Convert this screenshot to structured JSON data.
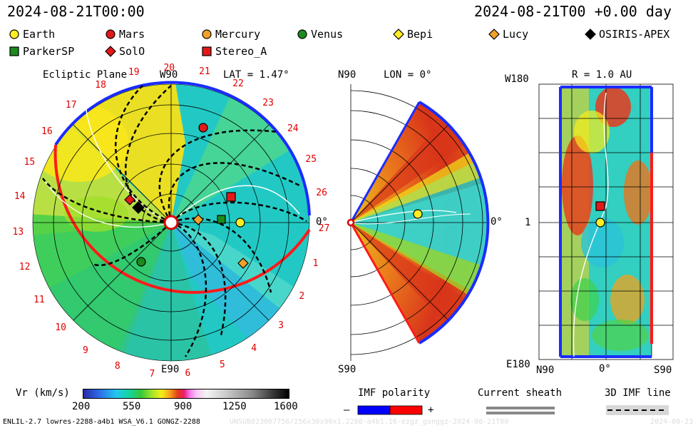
{
  "header": {
    "left_time": "2024-08-21T00:00",
    "right_time": "2024-08-21T00 +0.00 day"
  },
  "legend": [
    {
      "label": "Earth",
      "color": "#ffee22",
      "shape": "circle"
    },
    {
      "label": "Mars",
      "color": "#e41818",
      "shape": "circle"
    },
    {
      "label": "Mercury",
      "color": "#f2a128",
      "shape": "circle"
    },
    {
      "label": "Venus",
      "color": "#1c8a1c",
      "shape": "circle"
    },
    {
      "label": "Bepi",
      "color": "#ffee22",
      "shape": "diamond"
    },
    {
      "label": "Lucy",
      "color": "#f2a128",
      "shape": "diamond"
    },
    {
      "label": "OSIRIS-APEX",
      "color": "#000000",
      "shape": "diamond"
    },
    {
      "label": "ParkerSP",
      "color": "#1c8a1c",
      "shape": "square"
    },
    {
      "label": "SolO",
      "color": "#e41818",
      "shape": "diamond"
    },
    {
      "label": "Stereo_A",
      "color": "#e41818",
      "shape": "square"
    }
  ],
  "panels": {
    "ecliptic": {
      "title": "Ecliptic Plane",
      "lat": "LAT = 1.47°",
      "top": "W90",
      "bottom": "E90",
      "right": "0°",
      "carrington": [
        "19",
        "20",
        "21",
        "22",
        "23",
        "24",
        "25",
        "26",
        "27",
        "1",
        "2",
        "3",
        "4",
        "5",
        "6",
        "7",
        "8",
        "9",
        "10",
        "11",
        "12",
        "13",
        "14",
        "15",
        "16",
        "17",
        "18"
      ]
    },
    "meridional": {
      "top": "N90",
      "lon": "LON = 0°",
      "bottom": "S90",
      "right": "0°"
    },
    "radial": {
      "r": "R = 1.0 AU",
      "top_left": "W180",
      "mid_left": "1",
      "bottom_left": "E180",
      "x_left": "N90",
      "x_mid": "0°",
      "x_right": "S90"
    }
  },
  "colorbar": {
    "label": "Vr (km/s)",
    "ticks": [
      "200",
      "550",
      "900",
      "1250",
      "1600"
    ]
  },
  "imf": {
    "title": "IMF polarity",
    "minus": "–",
    "plus": "+",
    "neg_color": "#0000ff",
    "pos_color": "#ff0000"
  },
  "current_sheath": {
    "title": "Current sheath"
  },
  "imf_line": {
    "title": "3D IMF line"
  },
  "footer": {
    "model": "ENLIL-2.7 lowres-2288-a4b1 WSA_V6.1 GONGZ-2288",
    "file": "UNSUB823007756/256x30x90x1.2288-a4b1.16-ezgz_gonggz-2024-08-21T00",
    "date": "2024-08-23"
  }
}
